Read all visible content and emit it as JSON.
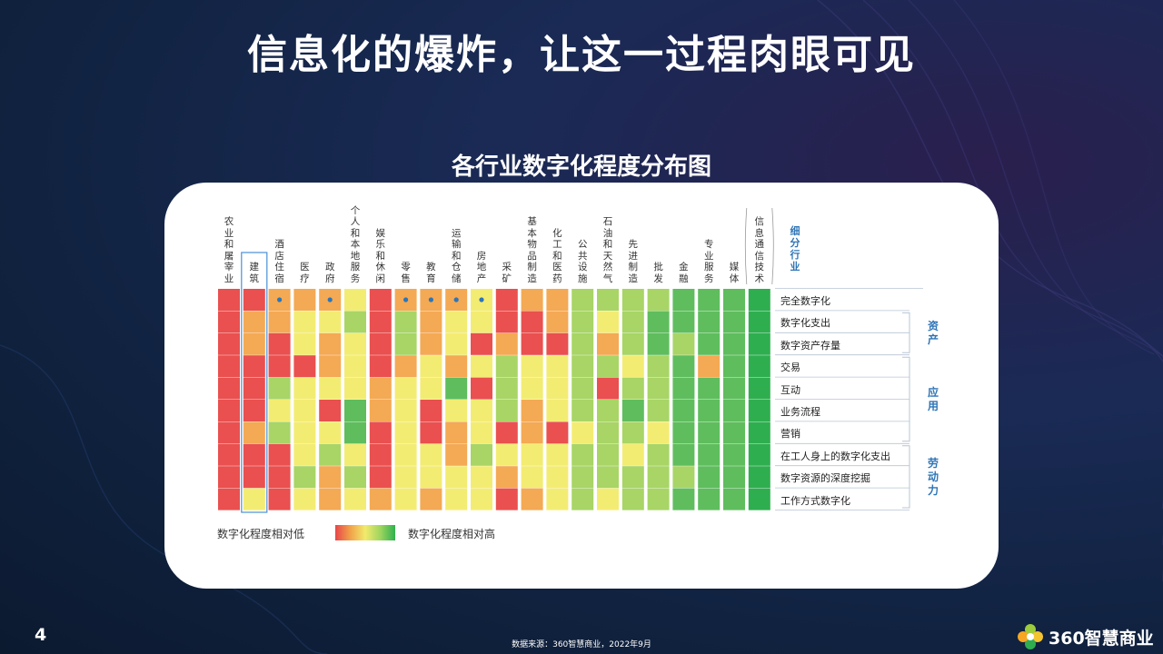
{
  "title": "信息化的爆炸，让这一过程肉眼可见",
  "chart_data": {
    "type": "heatmap",
    "title": "各行业数字化程度分布图",
    "industries": [
      "农业和屠宰业",
      "建筑",
      "酒店住宿",
      "医疗",
      "政府",
      "个人和本地服务",
      "娱乐和休闲",
      "零售",
      "教育",
      "运输和仓储",
      "房地产",
      "采矿",
      "基本物品制造",
      "化工和医药",
      "公共设施",
      "石油和天然气",
      "先进制造",
      "批发",
      "金融",
      "专业服务",
      "媒体",
      "信息通信技术"
    ],
    "industry_header": "细分行业",
    "dimensions": [
      "完全数字化",
      "数字化支出",
      "数字资产存量",
      "交易",
      "互动",
      "业务流程",
      "营销",
      "在工人身上的数字化支出",
      "数字资源的深度挖掘",
      "工作方式数字化"
    ],
    "groups": [
      {
        "name": "资产",
        "rows": [
          1,
          2
        ]
      },
      {
        "name": "应用",
        "rows": [
          3,
          6
        ]
      },
      {
        "name": "劳动力",
        "rows": [
          7,
          9
        ]
      }
    ],
    "scale_note": "1 = 数字化程度相对低, 5 = 数字化程度相对高",
    "values": [
      [
        1,
        1,
        2,
        2,
        2,
        3,
        1,
        2,
        2,
        2,
        3,
        1,
        2,
        2,
        4,
        4,
        4,
        4,
        5,
        5,
        5,
        5
      ],
      [
        1,
        2,
        2,
        3,
        3,
        4,
        1,
        4,
        2,
        3,
        3,
        1,
        1,
        2,
        4,
        3,
        4,
        5,
        5,
        5,
        5,
        5
      ],
      [
        1,
        2,
        1,
        3,
        2,
        3,
        1,
        4,
        2,
        3,
        1,
        2,
        1,
        1,
        4,
        2,
        4,
        5,
        4,
        5,
        5,
        5
      ],
      [
        1,
        1,
        1,
        1,
        2,
        3,
        1,
        2,
        3,
        2,
        3,
        4,
        3,
        3,
        4,
        4,
        3,
        4,
        5,
        2,
        5,
        5
      ],
      [
        1,
        1,
        4,
        3,
        3,
        3,
        2,
        3,
        3,
        5,
        1,
        4,
        3,
        3,
        4,
        1,
        4,
        4,
        5,
        5,
        5,
        5
      ],
      [
        1,
        1,
        3,
        3,
        1,
        5,
        2,
        3,
        1,
        3,
        3,
        4,
        2,
        3,
        4,
        4,
        5,
        4,
        5,
        5,
        5,
        5
      ],
      [
        1,
        2,
        4,
        3,
        3,
        5,
        1,
        3,
        1,
        2,
        3,
        1,
        2,
        1,
        3,
        4,
        4,
        3,
        5,
        5,
        5,
        5
      ],
      [
        1,
        1,
        1,
        3,
        4,
        3,
        1,
        3,
        3,
        2,
        4,
        3,
        3,
        3,
        4,
        4,
        3,
        4,
        5,
        5,
        5,
        5
      ],
      [
        1,
        1,
        1,
        4,
        2,
        4,
        1,
        3,
        3,
        3,
        3,
        2,
        3,
        3,
        4,
        4,
        4,
        4,
        4,
        5,
        5,
        5
      ],
      [
        1,
        3,
        1,
        3,
        2,
        3,
        2,
        3,
        2,
        3,
        3,
        1,
        2,
        3,
        4,
        3,
        4,
        4,
        5,
        5,
        5,
        5
      ]
    ],
    "dot_markers": [
      [
        0,
        2
      ],
      [
        0,
        4
      ],
      [
        0,
        7
      ],
      [
        0,
        8
      ],
      [
        0,
        9
      ],
      [
        0,
        10
      ]
    ],
    "highlighted_column": 1,
    "colors": {
      "1": "#e9504f",
      "2": "#f4a954",
      "3": "#f3ec73",
      "4": "#a8d566",
      "5": "#5fbd5e",
      "6": "#2fae50"
    },
    "legend": {
      "low": "数字化程度相对低",
      "high": "数字化程度相对高"
    }
  },
  "footer": {
    "page_number": "4",
    "source": "数据来源：360智慧商业，2022年9月",
    "logo_text": "360智慧商业"
  }
}
